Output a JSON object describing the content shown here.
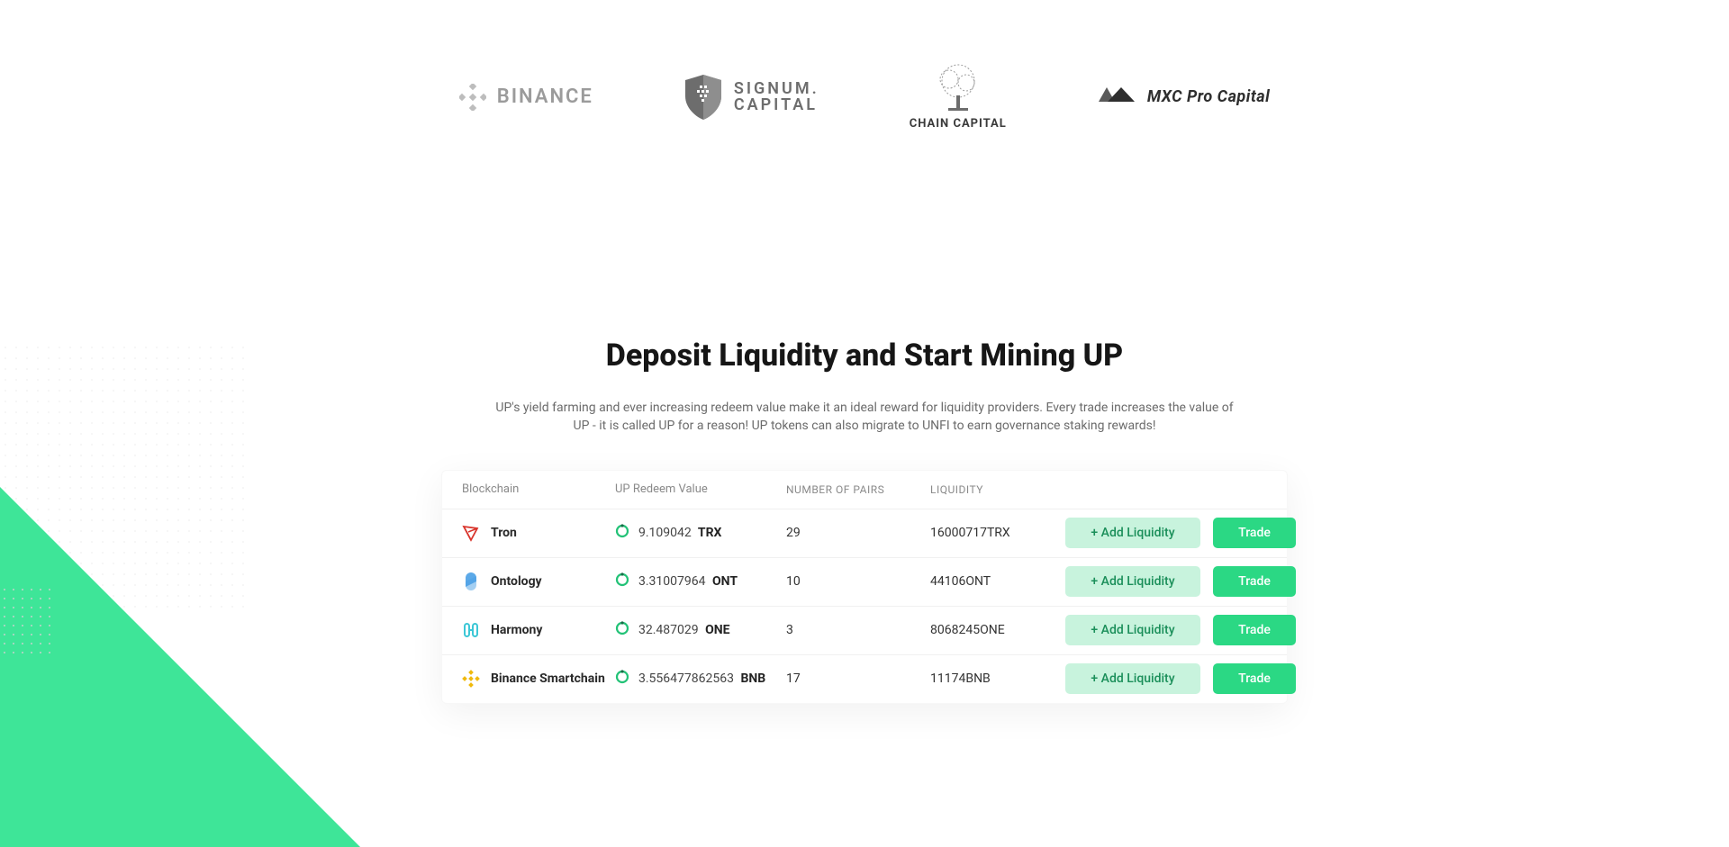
{
  "partners": [
    {
      "name": "BINANCE",
      "kind": "binance"
    },
    {
      "name_top": "SIGNUM.",
      "name_bottom": "CAPITAL",
      "kind": "signum"
    },
    {
      "name": "CHAIN CAPITAL",
      "kind": "chain"
    },
    {
      "name": "MXC Pro Capital",
      "kind": "mxc"
    }
  ],
  "section": {
    "title": "Deposit Liquidity and Start Mining UP",
    "description": "UP's yield farming and ever increasing redeem value make it an ideal reward for liquidity providers. Every trade increases the value of UP - it is called UP for a reason! UP tokens can also migrate to UNFI to earn governance staking rewards!"
  },
  "table": {
    "headers": {
      "blockchain": "Blockchain",
      "redeem": "UP Redeem Value",
      "pairs": "NUMBER OF PAIRS",
      "liquidity": "LIQUIDITY"
    },
    "buttons": {
      "add": "+ Add Liquidity",
      "trade": "Trade"
    },
    "rows": [
      {
        "chain": "Tron",
        "icon_color": "#d9352c",
        "icon_kind": "tron",
        "redeem_value": "9.109042",
        "redeem_symbol": "TRX",
        "pairs": "29",
        "liquidity": "16000717TRX"
      },
      {
        "chain": "Ontology",
        "icon_color": "#4aa0e6",
        "icon_kind": "ontology",
        "redeem_value": "3.31007964",
        "redeem_symbol": "ONT",
        "pairs": "10",
        "liquidity": "44106ONT"
      },
      {
        "chain": "Harmony",
        "icon_color": "#3cc7d6",
        "icon_kind": "harmony",
        "redeem_value": "32.487029",
        "redeem_symbol": "ONE",
        "pairs": "3",
        "liquidity": "8068245ONE"
      },
      {
        "chain": "Binance Smartchain",
        "icon_color": "#f0b90b",
        "icon_kind": "binance",
        "redeem_value": "3.556477862563",
        "redeem_symbol": "BNB",
        "pairs": "17",
        "liquidity": "11174BNB"
      }
    ]
  },
  "colors": {
    "accent": "#2bd884",
    "accent_light": "#c8f3dd",
    "text_muted": "#8a8a8a"
  }
}
